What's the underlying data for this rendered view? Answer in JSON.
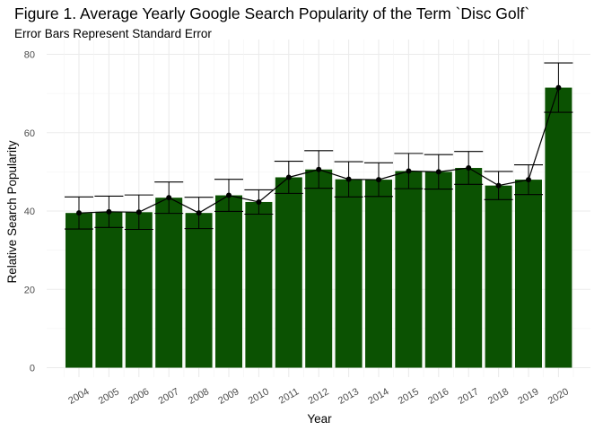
{
  "chart_data": {
    "type": "bar",
    "title": "Figure 1. Average Yearly Google Search Popularity of the Term `Disc Golf`",
    "subtitle": "Error Bars Represent Standard Error",
    "xlabel": "Year",
    "ylabel": "Relative Search Popularity",
    "categories": [
      "2004",
      "2005",
      "2006",
      "2007",
      "2008",
      "2009",
      "2010",
      "2011",
      "2012",
      "2013",
      "2014",
      "2015",
      "2016",
      "2017",
      "2018",
      "2019",
      "2020"
    ],
    "values": [
      39.5,
      39.8,
      39.7,
      43.4,
      39.5,
      44.0,
      42.3,
      48.6,
      50.6,
      48.1,
      48.0,
      50.2,
      50.0,
      51.0,
      46.5,
      48.0,
      71.5
    ],
    "error": [
      4.1,
      4.0,
      4.4,
      4.0,
      4.0,
      4.1,
      3.1,
      4.1,
      4.8,
      4.5,
      4.3,
      4.5,
      4.4,
      4.2,
      3.6,
      3.8,
      6.3
    ],
    "y_ticks": [
      0,
      20,
      40,
      60,
      80
    ],
    "ylim": [
      0,
      80
    ],
    "grid": true,
    "legend": "none",
    "bar_color": "#0b5202",
    "line_color": "#000000"
  }
}
